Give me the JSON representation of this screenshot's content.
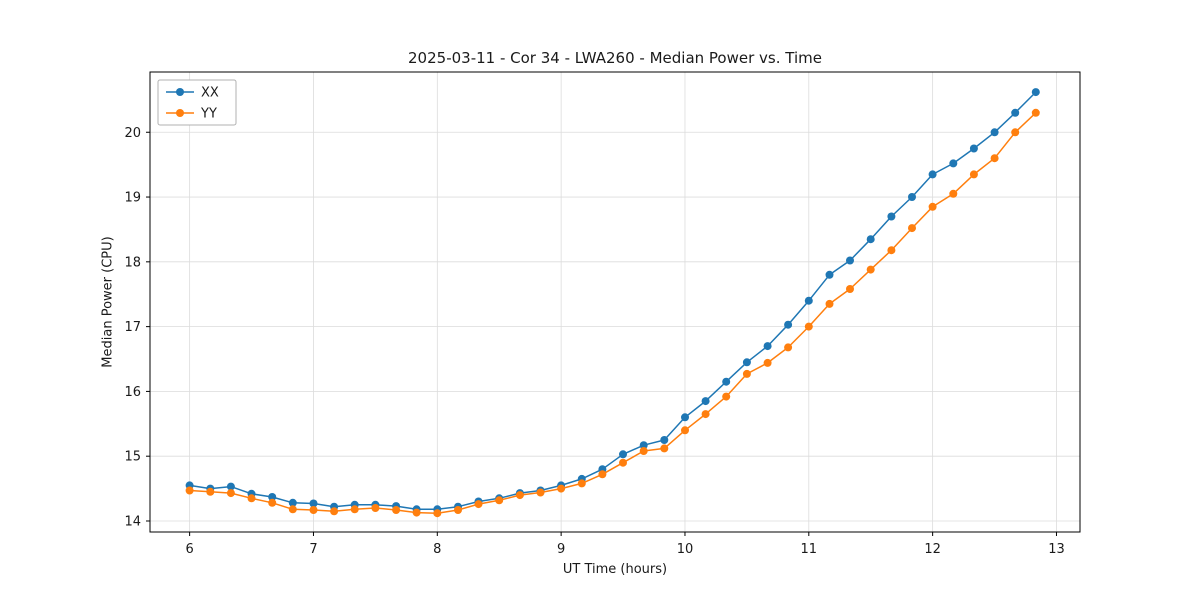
{
  "chart_data": {
    "type": "line",
    "title": "2025-03-11 - Cor 34 - LWA260 - Median Power vs. Time",
    "xlabel": "UT Time (hours)",
    "ylabel": "Median Power (CPU)",
    "xlim": [
      5.68,
      13.19
    ],
    "ylim": [
      13.83,
      20.93
    ],
    "xticks": [
      6,
      7,
      8,
      9,
      10,
      11,
      12,
      13
    ],
    "yticks": [
      14,
      15,
      16,
      17,
      18,
      19,
      20
    ],
    "grid": true,
    "grid_color": "#dcdcdc",
    "legend_position": "upper left",
    "x": [
      6.0,
      6.167,
      6.333,
      6.5,
      6.667,
      6.833,
      7.0,
      7.167,
      7.333,
      7.5,
      7.667,
      7.833,
      8.0,
      8.167,
      8.333,
      8.5,
      8.667,
      8.833,
      9.0,
      9.167,
      9.333,
      9.5,
      9.667,
      9.833,
      10.0,
      10.167,
      10.333,
      10.5,
      10.667,
      10.833,
      11.0,
      11.167,
      11.333,
      11.5,
      11.667,
      11.833,
      12.0,
      12.167,
      12.333,
      12.5,
      12.667,
      12.833
    ],
    "series": [
      {
        "name": "XX",
        "color": "#1f77b4",
        "values": [
          14.55,
          14.5,
          14.53,
          14.42,
          14.37,
          14.28,
          14.27,
          14.22,
          14.25,
          14.25,
          14.23,
          14.18,
          14.18,
          14.22,
          14.3,
          14.35,
          14.43,
          14.47,
          14.55,
          14.65,
          14.8,
          15.03,
          15.17,
          15.25,
          15.6,
          15.85,
          16.15,
          16.45,
          16.7,
          17.03,
          17.4,
          17.8,
          18.02,
          18.35,
          18.7,
          19.0,
          19.35,
          19.52,
          19.75,
          20.0,
          20.3,
          20.62
        ]
      },
      {
        "name": "YY",
        "color": "#ff7f0e",
        "values": [
          14.47,
          14.45,
          14.43,
          14.35,
          14.28,
          14.18,
          14.17,
          14.15,
          14.18,
          14.2,
          14.17,
          14.13,
          14.12,
          14.17,
          14.26,
          14.32,
          14.4,
          14.44,
          14.5,
          14.58,
          14.72,
          14.9,
          15.08,
          15.12,
          15.4,
          15.65,
          15.92,
          16.27,
          16.44,
          16.68,
          17.0,
          17.35,
          17.58,
          17.88,
          18.18,
          18.52,
          18.85,
          19.05,
          19.35,
          19.6,
          20.0,
          20.3
        ]
      }
    ]
  }
}
